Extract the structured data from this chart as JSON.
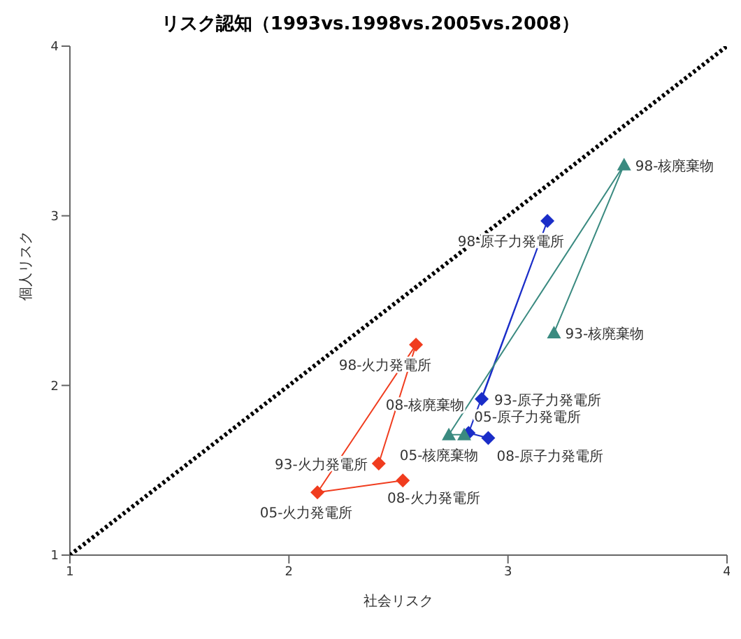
{
  "chart_data": {
    "type": "scatter",
    "title": "リスク認知（1993vs.1998vs.2005vs.2008）",
    "xlabel": "社会リスク",
    "ylabel": "個人リスク",
    "xlim": [
      1,
      4
    ],
    "ylim": [
      1,
      4
    ],
    "xticks": [
      1,
      2,
      3,
      4
    ],
    "yticks": [
      1,
      2,
      3,
      4
    ],
    "series": [
      {
        "type": "line",
        "color": "#000000",
        "x": [
          1,
          4
        ],
        "values": [
          1,
          4
        ],
        "marker": "none",
        "line_style": "dotted"
      },
      {
        "color": "#f03c1e",
        "x": [
          2.41,
          2.58,
          2.13,
          2.52
        ],
        "values": [
          1.54,
          2.24,
          1.37,
          1.44
        ],
        "marker": "diamond"
      },
      {
        "color": "#1a2dc8",
        "x": [
          2.88,
          3.18,
          2.82,
          2.91
        ],
        "values": [
          1.92,
          2.97,
          1.72,
          1.69
        ],
        "marker": "diamond"
      },
      {
        "color": "#3a8a80",
        "x": [
          3.21,
          3.53,
          2.73,
          2.8
        ],
        "values": [
          2.31,
          3.3,
          1.71,
          1.71
        ],
        "marker": "triangle"
      }
    ],
    "annotations": [
      {
        "text": "93-火力発電所",
        "x": 2.41,
        "y": 1.54
      },
      {
        "text": "98-火力発電所",
        "x": 2.58,
        "y": 2.24
      },
      {
        "text": "05-火力発電所",
        "x": 2.13,
        "y": 1.37
      },
      {
        "text": "08-火力発電所",
        "x": 2.52,
        "y": 1.44
      },
      {
        "text": "93-原子力発電所",
        "x": 2.88,
        "y": 1.92
      },
      {
        "text": "98-原子力発電所",
        "x": 3.18,
        "y": 2.97
      },
      {
        "text": "05-原子力発電所",
        "x": 2.82,
        "y": 1.72
      },
      {
        "text": "08-原子力発電所",
        "x": 2.91,
        "y": 1.69
      },
      {
        "text": "93-核廃棄物",
        "x": 3.21,
        "y": 2.31
      },
      {
        "text": "98-核廃棄物",
        "x": 3.53,
        "y": 3.3
      },
      {
        "text": "05-核廃棄物",
        "x": 2.73,
        "y": 1.71
      },
      {
        "text": "08-核廃棄物",
        "x": 2.8,
        "y": 1.71
      }
    ]
  }
}
